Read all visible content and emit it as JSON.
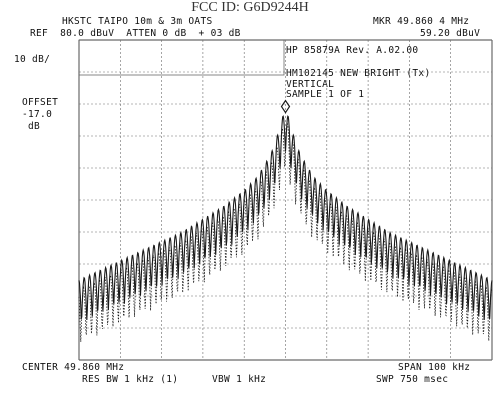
{
  "watermark": "FCC ID: G6D9244H",
  "header": {
    "site": "HKSTC TAIPO 10m & 3m OATS",
    "ref": "REF  80.0 dBuV  ATTEN 0 dB  + 03 dB",
    "marker": "MKR 49.860 4 MHz",
    "marker_level": "59.20 dBuV"
  },
  "left_panel": {
    "scale": "10 dB/",
    "offset_label": "OFFSET",
    "offset_value": "-17.0",
    "offset_unit": "dB"
  },
  "annotations": {
    "model": "HP 85879A Rev. A.02.00",
    "test_id": "HM102145 NEW BRIGHT (Tx)",
    "polarization": "VERTICAL",
    "sample": "SAMPLE 1 OF 1"
  },
  "footer": {
    "center": "CENTER 49.860 MHz",
    "span": "SPAN 100 kHz",
    "res_bw": "RES BW 1 kHz (1)",
    "vbw": "VBW 1 kHz",
    "sweep": "SWP 750 msec"
  },
  "display": {
    "trace_color": "#1a1a1a",
    "grid_color": "#6a6a6a"
  },
  "chart_data": {
    "type": "line",
    "x_unit": "MHz",
    "y_unit": "dBuV",
    "center_mhz": 49.86,
    "span_khz": 100,
    "ylim": [
      -20,
      80
    ],
    "grid": true,
    "series": [
      {
        "values_x_khz_offset": [
          -50,
          -45,
          -40,
          -35,
          -30,
          -25,
          -20,
          -15,
          -10,
          -7,
          -5,
          -3,
          -1.5,
          0,
          1.5,
          3,
          5,
          7,
          10,
          15,
          20,
          25,
          30,
          35,
          40,
          45,
          50
        ],
        "values_y": [
          5,
          8,
          11,
          14,
          17,
          20,
          24,
          28,
          33,
          37,
          41,
          46,
          52,
          59.2,
          52,
          46,
          41,
          37,
          33,
          28,
          24,
          20,
          17,
          14,
          11,
          8,
          5
        ]
      }
    ]
  }
}
